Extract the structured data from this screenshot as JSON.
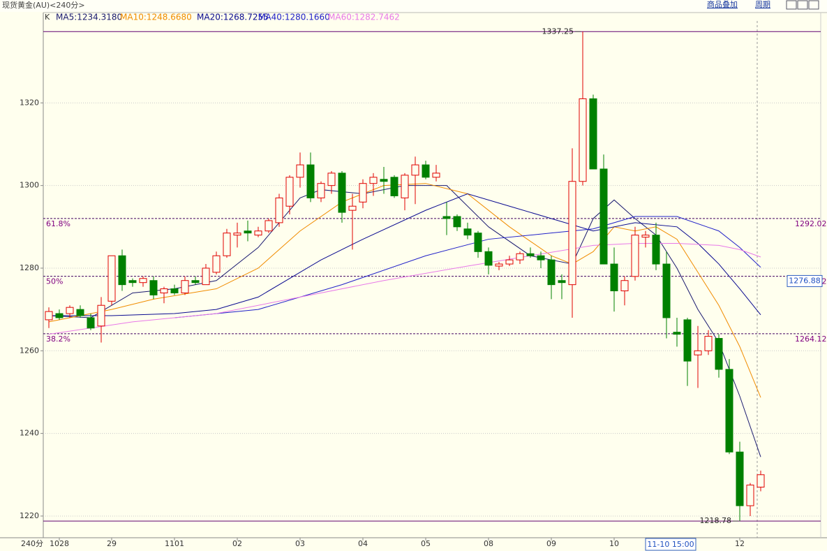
{
  "chart_data": {
    "type": "candlestick",
    "title": "现货黄金(AU)<240分>",
    "toolbar": [
      "商品叠加",
      "周期"
    ],
    "indicator": "K",
    "period_label": "240分",
    "categories": [
      null,
      "1028",
      null,
      null,
      null,
      null,
      "29",
      null,
      null,
      null,
      null,
      null,
      "1101",
      null,
      null,
      null,
      null,
      null,
      "02",
      null,
      null,
      null,
      null,
      null,
      "03",
      null,
      null,
      null,
      null,
      null,
      "04",
      null,
      null,
      null,
      null,
      null,
      "05",
      null,
      null,
      null,
      null,
      null,
      "08",
      null,
      null,
      null,
      null,
      null,
      "09",
      null,
      null,
      null,
      null,
      null,
      "10",
      null,
      null,
      null,
      null,
      null,
      null,
      null,
      null,
      null,
      null,
      null,
      "12",
      null,
      null
    ],
    "cursor_time": "11-10 15:00",
    "cursor_price": 1276.88,
    "candles": {
      "up_color": "#e00000",
      "down_color": "#008000",
      "open": [
        1267.5,
        1269,
        1269,
        1270,
        1268,
        1266,
        1272,
        1283,
        1277,
        1276.5,
        1277,
        1274,
        1275,
        1274,
        1277,
        1276,
        1279,
        1283,
        1288,
        1289,
        1288,
        1289,
        1291,
        1295,
        1302,
        1305,
        1297,
        1300,
        1303,
        1294,
        1296,
        1300.5,
        1301.5,
        1302,
        1297,
        1302.5,
        1305,
        1302,
        1292.5,
        1292.5,
        1289.5,
        1288.5,
        1284,
        1280.5,
        1281,
        1282,
        1283.5,
        1283,
        1282,
        1277,
        1276,
        1301,
        1321,
        1304,
        1281,
        1274.5,
        1278,
        1287.5,
        1288,
        1281,
        1264.5,
        1267.5,
        1259,
        1260,
        1263,
        1255.5,
        1235.5,
        1222.5,
        1227
      ],
      "high": [
        1270.5,
        1270,
        1271,
        1271,
        1269,
        1273,
        1283,
        1284.5,
        1277.5,
        1278,
        1278,
        1275.5,
        1276,
        1278,
        1278,
        1281,
        1284,
        1289.5,
        1291,
        1291.5,
        1290,
        1292,
        1298,
        1302.5,
        1308,
        1308,
        1301,
        1303.5,
        1303.5,
        1298,
        1301.5,
        1303,
        1304.5,
        1302.5,
        1303,
        1307,
        1306,
        1305,
        1296,
        1293,
        1291,
        1289,
        1285,
        1281.5,
        1283,
        1284,
        1285,
        1284,
        1283,
        1278.5,
        1309,
        1337.25,
        1322,
        1307.5,
        1285,
        1278,
        1290,
        1289,
        1291,
        1284,
        1268,
        1268,
        1266,
        1265,
        1264,
        1258,
        1238,
        1228,
        1231
      ],
      "low": [
        1265.5,
        1267.5,
        1268,
        1268,
        1265,
        1262,
        1271,
        1274.5,
        1275.5,
        1275.5,
        1272.5,
        1271.5,
        1273.5,
        1273.5,
        1276,
        1276,
        1278.5,
        1282.5,
        1285,
        1286.5,
        1287.5,
        1288.5,
        1290,
        1293,
        1299.5,
        1296,
        1296,
        1298,
        1291,
        1284.5,
        1294.5,
        1297.5,
        1298,
        1297,
        1294,
        1295.5,
        1301.5,
        1301,
        1288,
        1289,
        1287,
        1282.5,
        1278.5,
        1279.5,
        1280.5,
        1281,
        1282.5,
        1280,
        1272.5,
        1272.5,
        1268,
        1300,
        1304,
        1281,
        1269.5,
        1271,
        1277,
        1285,
        1279.5,
        1263,
        1261,
        1251.5,
        1251,
        1259,
        1253.5,
        1235,
        1218.78,
        1220,
        1226
      ],
      "close": [
        1269.5,
        1268,
        1270.5,
        1268.5,
        1265.5,
        1271,
        1283,
        1276,
        1276.5,
        1277.5,
        1273.5,
        1275,
        1274,
        1277,
        1276.5,
        1280,
        1283,
        1288.5,
        1288.5,
        1288.5,
        1289,
        1291.5,
        1297,
        1302,
        1305,
        1297,
        1300.5,
        1303,
        1293.5,
        1295,
        1300.5,
        1302,
        1301,
        1297.5,
        1302.5,
        1305,
        1302,
        1303,
        1292,
        1290,
        1288,
        1284,
        1280.7,
        1281,
        1282,
        1283.5,
        1283,
        1282,
        1276,
        1276.5,
        1301,
        1321,
        1304,
        1281,
        1274.5,
        1277,
        1288,
        1288,
        1281,
        1268,
        1264,
        1257.5,
        1260,
        1263.5,
        1255.5,
        1235.5,
        1222.5,
        1227.5,
        1230
      ]
    },
    "ma_lines": [
      {
        "name": "MA5:1234.3180",
        "color": "#1a1a70",
        "x": [
          0,
          4,
          8,
          12,
          16,
          20,
          24,
          26,
          30,
          34,
          38,
          42,
          46,
          50,
          52,
          54,
          56,
          58,
          60,
          62,
          64,
          66,
          68
        ],
        "values": [
          1268.5,
          1268,
          1274,
          1275,
          1277,
          1285,
          1297,
          1299,
          1298,
          1300,
          1300,
          1290,
          1283,
          1281,
          1292,
          1296.5,
          1292,
          1288,
          1280,
          1270,
          1262,
          1249,
          1234.3
        ]
      },
      {
        "name": "MA10:1248.6680",
        "color": "#f08c00",
        "x": [
          0,
          6,
          10,
          16,
          20,
          24,
          28,
          32,
          36,
          40,
          44,
          48,
          50,
          52,
          54,
          56,
          58,
          60,
          62,
          64,
          66,
          68
        ],
        "values": [
          1267,
          1270,
          1272.5,
          1275,
          1280,
          1289,
          1296,
          1300,
          1300.5,
          1298,
          1290,
          1283,
          1281,
          1284,
          1290,
          1289,
          1290,
          1287,
          1279,
          1271,
          1261,
          1248.7
        ]
      },
      {
        "name": "MA20:1268.7255",
        "color": "#0a0a90",
        "x": [
          0,
          6,
          12,
          16,
          20,
          26,
          30,
          36,
          40,
          44,
          48,
          52,
          56,
          60,
          62,
          64,
          66,
          68
        ],
        "values": [
          1268.5,
          1268.5,
          1269,
          1270,
          1273,
          1282,
          1287,
          1294,
          1298,
          1295,
          1292,
          1289,
          1291,
          1290,
          1286,
          1281,
          1275,
          1268.7
        ]
      },
      {
        "name": "MA40:1280.1660",
        "color": "#2020c8",
        "x": [
          12,
          20,
          28,
          36,
          42,
          48,
          52,
          56,
          60,
          64,
          66,
          68
        ],
        "values": [
          1268,
          1270,
          1276,
          1283,
          1287,
          1288.5,
          1289.5,
          1292.5,
          1292.5,
          1289,
          1285,
          1280.2
        ]
      },
      {
        "name": "MA60:1282.7462",
        "color": "#e878e8",
        "x": [
          0,
          8,
          16,
          24,
          32,
          40,
          46,
          52,
          56,
          60,
          64,
          66,
          68
        ],
        "values": [
          1264,
          1267,
          1269,
          1273,
          1277,
          1280.5,
          1283,
          1285.5,
          1286,
          1286,
          1285.5,
          1284.5,
          1282.7
        ]
      }
    ],
    "fib_levels": [
      {
        "label": "61.8%",
        "value": 1292.02
      },
      {
        "label": "50%",
        "value": 1278.02
      },
      {
        "label": "38.2%",
        "value": 1264.12
      }
    ],
    "max": 1337.25,
    "min": 1218.78,
    "ylim": [
      1214.75,
      1341.86
    ],
    "yticks": [
      1220,
      1240,
      1260,
      1280,
      1300,
      1320
    ],
    "grid": true
  }
}
